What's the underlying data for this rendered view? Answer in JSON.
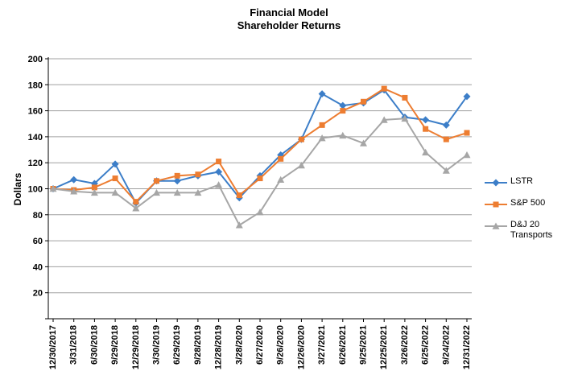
{
  "chart_data": {
    "type": "line",
    "title": "Financial Model",
    "subtitle": "Shareholder Returns",
    "ylabel": "Dollars",
    "ylim": [
      0,
      200
    ],
    "ytick_step": 20,
    "grid": "horizontal",
    "legend_position": "right",
    "categories": [
      "12/30/2017",
      "3/31/2018",
      "6/30/2018",
      "9/29/2018",
      "12/29/2018",
      "3/30/2019",
      "6/29/2019",
      "9/28/2019",
      "12/28/2019",
      "3/28/2020",
      "6/27/2020",
      "9/26/2020",
      "12/26/2020",
      "3/27/2021",
      "6/26/2021",
      "9/25/2021",
      "12/25/2021",
      "3/26/2022",
      "6/25/2022",
      "9/24/2022",
      "12/31/2022"
    ],
    "series": [
      {
        "name": "LSTR",
        "color": "#3C7EC8",
        "marker": "diamond",
        "values": [
          100,
          107,
          104,
          119,
          89,
          106,
          106,
          110,
          113,
          93,
          110,
          126,
          138,
          173,
          164,
          166,
          176,
          155,
          153,
          149,
          171
        ]
      },
      {
        "name": "S&P 500",
        "color": "#ED7D31",
        "marker": "square",
        "values": [
          100,
          99,
          101,
          108,
          90,
          106,
          110,
          111,
          121,
          95,
          108,
          123,
          138,
          149,
          160,
          167,
          177,
          170,
          146,
          138,
          143
        ]
      },
      {
        "name": "D&J 20 Transports",
        "color": "#A6A6A6",
        "marker": "triangle",
        "values": [
          100,
          98,
          97,
          97,
          85,
          97,
          97,
          97,
          103,
          72,
          82,
          107,
          118,
          139,
          141,
          135,
          153,
          154,
          128,
          114,
          126
        ]
      }
    ]
  },
  "colors": {
    "axis": "#000000",
    "gridline": "#A0A0A0",
    "background": "#FFFFFF",
    "title": "#000000"
  }
}
